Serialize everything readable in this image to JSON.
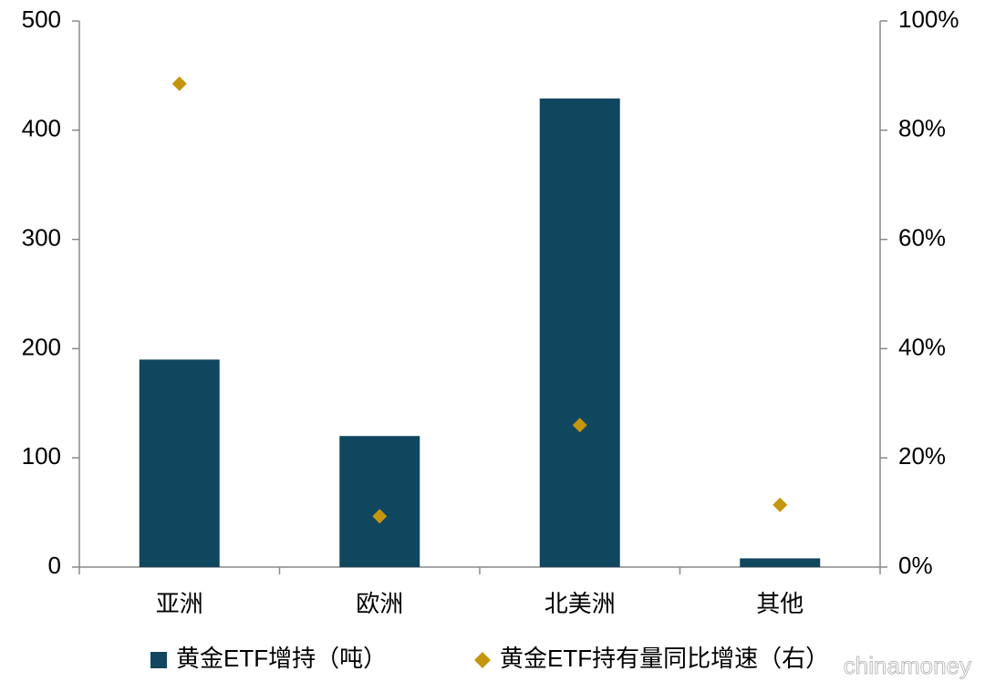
{
  "chart_data": {
    "type": "bar",
    "categories": [
      "亚洲",
      "欧洲",
      "北美洲",
      "其他"
    ],
    "series": [
      {
        "name": "黄金ETF增持（吨）",
        "type": "bar",
        "color": "#11465f",
        "values": [
          190,
          120,
          429,
          8
        ]
      },
      {
        "name": "黄金ETF持有量同比增速（右）",
        "type": "scatter",
        "axis": "y2",
        "color": "#c4960f",
        "values": [
          88.5,
          9.3,
          26,
          11.4
        ]
      }
    ],
    "ylim": [
      0,
      500
    ],
    "yticks": [
      0,
      100,
      200,
      300,
      400,
      500
    ],
    "y2lim": [
      0,
      100
    ],
    "y2ticks": [
      {
        "value": 0,
        "label": "0%"
      },
      {
        "value": 20,
        "label": "20%"
      },
      {
        "value": 40,
        "label": "40%"
      },
      {
        "value": 60,
        "label": "60%"
      },
      {
        "value": 80,
        "label": "80%"
      },
      {
        "value": 100,
        "label": "100%"
      }
    ],
    "legend": "bottom",
    "watermark": "chinamoney"
  }
}
